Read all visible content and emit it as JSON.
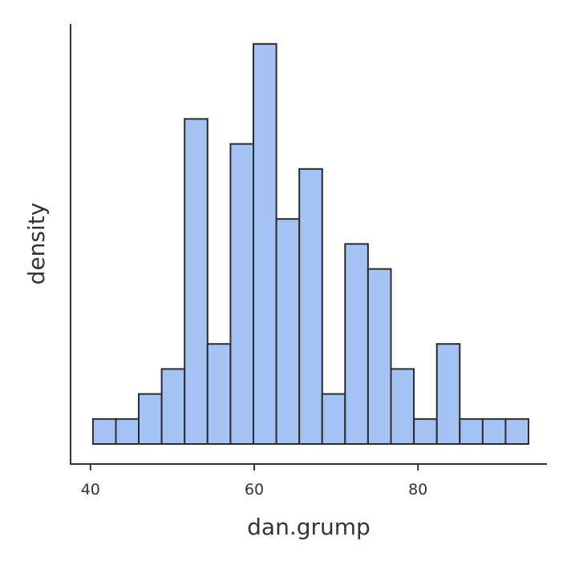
{
  "chart_data": {
    "type": "bar",
    "subtype": "histogram",
    "xlabel": "dan.grump",
    "ylabel": "density",
    "x_ticks": [
      40,
      60,
      80
    ],
    "xlim": [
      38,
      95
    ],
    "ylim": [
      0,
      16.8
    ],
    "y_ticks_shown": false,
    "grid": false,
    "colors": {
      "bar_fill": "#a4c3f2",
      "bar_edge": "#2b2b2b",
      "axis": "#333333"
    },
    "bins": [
      {
        "x0": 40.3,
        "x1": 43.1,
        "value": 1
      },
      {
        "x0": 43.1,
        "x1": 45.9,
        "value": 1
      },
      {
        "x0": 45.9,
        "x1": 48.7,
        "value": 2
      },
      {
        "x0": 48.7,
        "x1": 51.5,
        "value": 3
      },
      {
        "x0": 51.5,
        "x1": 54.3,
        "value": 13
      },
      {
        "x0": 54.3,
        "x1": 57.1,
        "value": 4
      },
      {
        "x0": 57.1,
        "x1": 59.9,
        "value": 12
      },
      {
        "x0": 59.9,
        "x1": 62.7,
        "value": 16
      },
      {
        "x0": 62.7,
        "x1": 65.5,
        "value": 9
      },
      {
        "x0": 65.5,
        "x1": 68.3,
        "value": 11
      },
      {
        "x0": 68.3,
        "x1": 71.1,
        "value": 2
      },
      {
        "x0": 71.1,
        "x1": 73.9,
        "value": 8
      },
      {
        "x0": 73.9,
        "x1": 76.7,
        "value": 7
      },
      {
        "x0": 76.7,
        "x1": 79.5,
        "value": 3
      },
      {
        "x0": 79.5,
        "x1": 82.3,
        "value": 1
      },
      {
        "x0": 82.3,
        "x1": 85.1,
        "value": 4
      },
      {
        "x0": 85.1,
        "x1": 87.9,
        "value": 1
      },
      {
        "x0": 87.9,
        "x1": 90.7,
        "value": 1
      },
      {
        "x0": 90.7,
        "x1": 93.5,
        "value": 1
      }
    ]
  }
}
